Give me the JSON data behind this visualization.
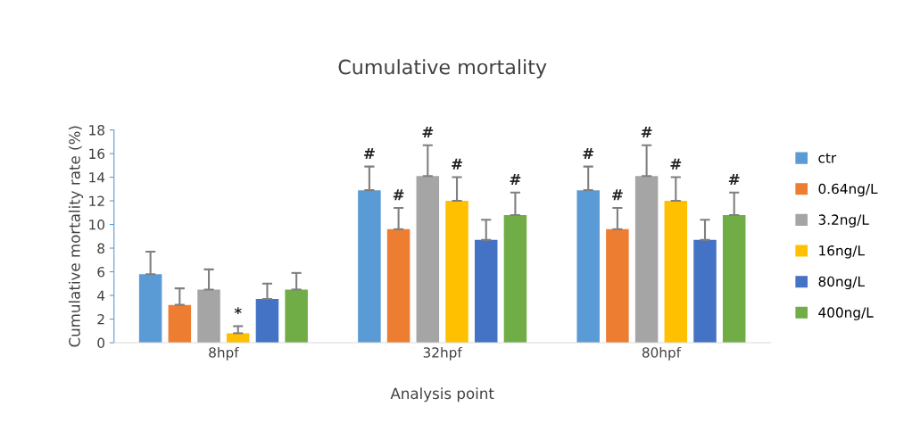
{
  "chart_data": {
    "type": "bar",
    "title": "Cumulative mortality",
    "xlabel": "Analysis point",
    "ylabel": "Cumulative mortality rate (%)",
    "categories": [
      "8hpf",
      "32hpf",
      "80hpf"
    ],
    "series": [
      {
        "name": "ctr",
        "color": "#5b9bd5",
        "values": [
          5.8,
          12.9,
          12.9
        ],
        "errors": [
          [
            5.8,
            7.7
          ],
          [
            12.9,
            14.9
          ],
          [
            12.9,
            14.9
          ]
        ],
        "value_labels": [
          null,
          "#",
          "#"
        ]
      },
      {
        "name": "0.64ng/L",
        "color": "#ed7d31",
        "values": [
          3.2,
          9.6,
          9.6
        ],
        "errors": [
          [
            3.2,
            4.6
          ],
          [
            9.6,
            11.4
          ],
          [
            9.6,
            11.4
          ]
        ],
        "value_labels": [
          null,
          "#",
          "#"
        ]
      },
      {
        "name": "3.2ng/L",
        "color": "#a5a5a5",
        "values": [
          4.5,
          14.1,
          14.1
        ],
        "errors": [
          [
            4.5,
            6.2
          ],
          [
            14.1,
            16.7
          ],
          [
            14.1,
            16.7
          ]
        ],
        "value_labels": [
          null,
          "#",
          "#"
        ]
      },
      {
        "name": "16ng/L",
        "color": "#ffc000",
        "values": [
          0.8,
          12.0,
          12.0
        ],
        "errors": [
          [
            0.8,
            1.4
          ],
          [
            12.0,
            14.0
          ],
          [
            12.0,
            14.0
          ]
        ],
        "value_labels": [
          "*",
          "#",
          "#"
        ]
      },
      {
        "name": "80ng/L",
        "color": "#4472c4",
        "values": [
          3.7,
          8.7,
          8.7
        ],
        "errors": [
          [
            3.7,
            5.0
          ],
          [
            8.7,
            10.4
          ],
          [
            8.7,
            10.4
          ]
        ],
        "value_labels": [
          null,
          null,
          null
        ]
      },
      {
        "name": "400ng/L",
        "color": "#70ad47",
        "values": [
          4.5,
          10.8,
          10.8
        ],
        "errors": [
          [
            4.5,
            5.9
          ],
          [
            10.8,
            12.7
          ],
          [
            10.8,
            12.7
          ]
        ],
        "value_labels": [
          null,
          "#",
          "#"
        ]
      }
    ],
    "ylim": [
      0,
      18
    ],
    "yticks": [
      0,
      2,
      4,
      6,
      8,
      10,
      12,
      14,
      16,
      18
    ],
    "grid": false,
    "legend": "right"
  }
}
